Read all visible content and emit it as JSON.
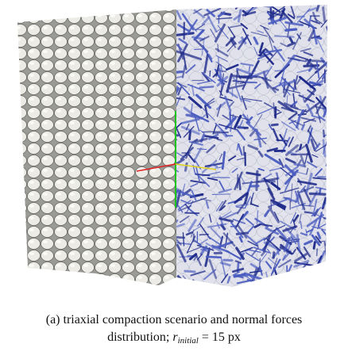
{
  "caption": {
    "label": "(a)",
    "line1": "triaxial compaction scenario and normal forces",
    "line2": "distribution;",
    "symbol": "r",
    "subscript": "initial",
    "equation_rest": "= 15 px"
  }
}
